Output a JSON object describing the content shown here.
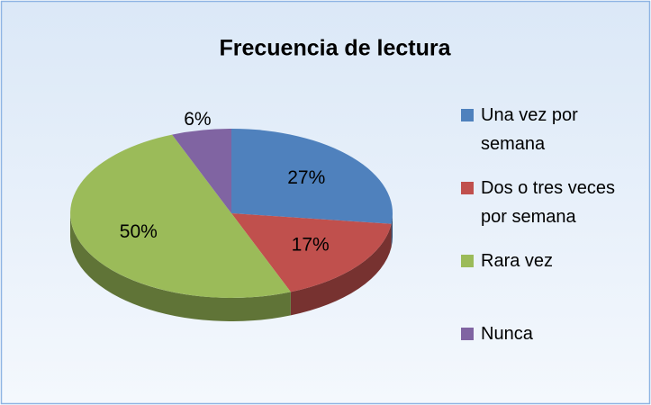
{
  "chart_data": {
    "type": "pie3d",
    "title": "Frecuencia de lectura",
    "categories": [
      "Una vez por semana",
      "Dos o tres veces por semana",
      "Rara vez",
      "Nunca"
    ],
    "values": [
      27,
      17,
      50,
      6
    ],
    "value_labels": [
      "27%",
      "17%",
      "50%",
      "6%"
    ],
    "colors": [
      "#4f81bd",
      "#c0504d",
      "#9bbb59",
      "#8064a2"
    ],
    "legend": "right"
  }
}
